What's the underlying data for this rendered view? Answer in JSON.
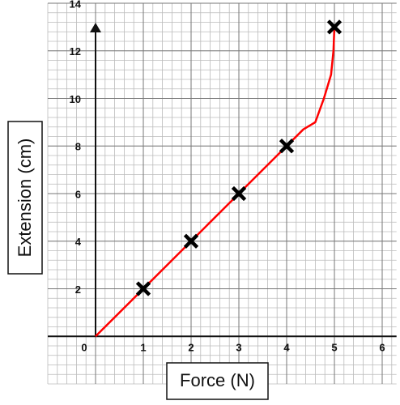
{
  "chart_data": {
    "type": "scatter",
    "x_label": "Force (N)",
    "y_label": "Extension (cm)",
    "xlim": [
      -1,
      6.3
    ],
    "ylim": [
      -2,
      14
    ],
    "xticks": [
      0,
      1,
      2,
      3,
      4,
      5,
      6
    ],
    "yticks": [
      2,
      4,
      6,
      8,
      10,
      12,
      14
    ],
    "grid": true,
    "points": {
      "x": [
        1,
        2,
        3,
        4,
        5
      ],
      "y": [
        2,
        4,
        6,
        8,
        13
      ],
      "color": "#000000"
    },
    "curve": {
      "x": [
        0,
        4,
        4.35,
        4.6,
        4.78,
        4.93,
        4.98,
        5
      ],
      "y": [
        0,
        8,
        8.7,
        9,
        10,
        11,
        12,
        13
      ],
      "color": "#ff0000"
    }
  }
}
